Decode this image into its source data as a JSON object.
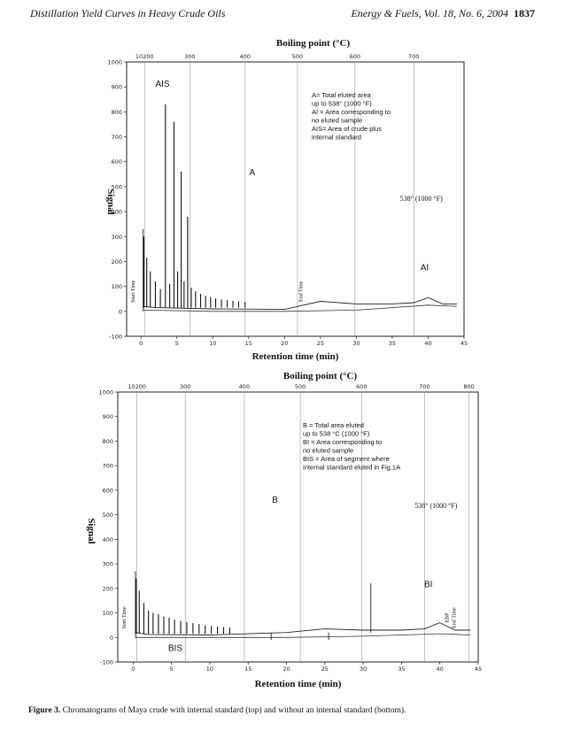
{
  "header": {
    "left": "Distillation Yield Curves in Heavy Crude Oils",
    "right": "Energy & Fuels, Vol. 18, No. 6, 2004",
    "page": "1837"
  },
  "caption": {
    "label": "Figure 3.",
    "text": "Chromatograms of Maya crude with internal standard (top) and without an internal standard (bottom)."
  },
  "chart_data": [
    {
      "type": "line",
      "xlabel": "Retention time (min)",
      "ylabel": "Signal",
      "top_axis_label": "Boiling point (°C)",
      "xlim": [
        -2,
        45
      ],
      "ylim": [
        -100,
        1000
      ],
      "x_ticks": [
        0,
        5,
        10,
        15,
        20,
        25,
        30,
        35,
        40,
        45
      ],
      "y_ticks": [
        -100,
        0,
        100,
        200,
        300,
        400,
        500,
        600,
        700,
        800,
        900,
        1000
      ],
      "bp_ticks": [
        {
          "label": "10200",
          "x": 0.5
        },
        {
          "label": "300",
          "x": 6.8
        },
        {
          "label": "400",
          "x": 14.5
        },
        {
          "label": "500",
          "x": 21.8
        },
        {
          "label": "600",
          "x": 29.8
        },
        {
          "label": "700",
          "x": 38.0
        }
      ],
      "region_labels": [
        {
          "text": "AIS",
          "x": 3,
          "y": 900
        },
        {
          "text": "A",
          "x": 15.5,
          "y": 545
        },
        {
          "text": "AI",
          "x": 39.5,
          "y": 165
        }
      ],
      "legend_lines": [
        "A= Total eluted area",
        "up to 538° (1000 °F)",
        "AI = Area corresponding to",
        "no eluted sample",
        "AIS= Area of crude plus",
        "internal standard"
      ],
      "marker_label": "538° (1000 °F)",
      "marker_x": 37.8,
      "vertical_texts": [
        "Start Time",
        "End Time"
      ],
      "peaks": [
        {
          "x": 0.4,
          "y": 300
        },
        {
          "x": 0.8,
          "y": 215
        },
        {
          "x": 1.3,
          "y": 160
        },
        {
          "x": 2.0,
          "y": 120
        },
        {
          "x": 2.7,
          "y": 90
        },
        {
          "x": 3.4,
          "y": 830
        },
        {
          "x": 4.0,
          "y": 110
        },
        {
          "x": 4.6,
          "y": 760
        },
        {
          "x": 5.1,
          "y": 160
        },
        {
          "x": 5.6,
          "y": 560
        },
        {
          "x": 6.0,
          "y": 120
        },
        {
          "x": 6.5,
          "y": 380
        },
        {
          "x": 7.0,
          "y": 95
        },
        {
          "x": 7.6,
          "y": 80
        },
        {
          "x": 8.3,
          "y": 70
        },
        {
          "x": 9.0,
          "y": 62
        },
        {
          "x": 9.7,
          "y": 58
        },
        {
          "x": 10.4,
          "y": 52
        },
        {
          "x": 11.2,
          "y": 48
        },
        {
          "x": 12.0,
          "y": 45
        },
        {
          "x": 12.8,
          "y": 42
        },
        {
          "x": 13.6,
          "y": 40
        },
        {
          "x": 14.5,
          "y": 38
        }
      ],
      "baseline": [
        [
          0.3,
          20
        ],
        [
          2,
          15
        ],
        [
          10,
          10
        ],
        [
          20,
          8
        ],
        [
          25,
          40
        ],
        [
          30,
          30
        ],
        [
          35,
          30
        ],
        [
          38,
          35
        ],
        [
          40,
          55
        ],
        [
          42,
          30
        ],
        [
          44,
          30
        ]
      ],
      "lower_trace": [
        [
          0.3,
          5
        ],
        [
          10,
          0
        ],
        [
          20,
          0
        ],
        [
          30,
          5
        ],
        [
          40,
          25
        ],
        [
          44,
          20
        ]
      ]
    },
    {
      "type": "line",
      "xlabel": "Retention time (min)",
      "ylabel": "Signal",
      "top_axis_label": "Boiling point (°C)",
      "xlim": [
        -2,
        45
      ],
      "ylim": [
        -100,
        1000
      ],
      "x_ticks": [
        0,
        5,
        10,
        15,
        20,
        25,
        30,
        35,
        40,
        45
      ],
      "y_ticks": [
        -100,
        0,
        100,
        200,
        300,
        400,
        500,
        600,
        700,
        800,
        900,
        1000
      ],
      "bp_ticks": [
        {
          "label": "10200",
          "x": 0.5
        },
        {
          "label": "300",
          "x": 6.8
        },
        {
          "label": "400",
          "x": 14.5
        },
        {
          "label": "500",
          "x": 21.8
        },
        {
          "label": "600",
          "x": 29.8
        },
        {
          "label": "700",
          "x": 38.0
        },
        {
          "label": "800",
          "x": 43.8
        }
      ],
      "region_labels": [
        {
          "text": "B",
          "x": 18.5,
          "y": 550
        },
        {
          "text": "BI",
          "x": 38.5,
          "y": 205
        },
        {
          "text": "BIS",
          "x": 5.5,
          "y": -55
        }
      ],
      "legend_lines": [
        "B = Total area eluted",
        "up to 538 °C (1000 °F)",
        "BI = Area corresponding to",
        "no eluted sample",
        "BIS = Area of segment where",
        "internal standard eluted in Fig.1A"
      ],
      "marker_label": "538° (1000 °F)",
      "marker_x": 38.8,
      "vertical_texts": [
        "Start Time",
        "EBP",
        "End Time"
      ],
      "peaks": [
        {
          "x": 0.4,
          "y": 240
        },
        {
          "x": 0.8,
          "y": 190
        },
        {
          "x": 1.4,
          "y": 140
        },
        {
          "x": 2.0,
          "y": 110
        },
        {
          "x": 2.6,
          "y": 100
        },
        {
          "x": 3.3,
          "y": 95
        },
        {
          "x": 4.0,
          "y": 85
        },
        {
          "x": 4.7,
          "y": 80
        },
        {
          "x": 5.4,
          "y": 72
        },
        {
          "x": 6.2,
          "y": 68
        },
        {
          "x": 7.0,
          "y": 62
        },
        {
          "x": 7.8,
          "y": 58
        },
        {
          "x": 8.6,
          "y": 55
        },
        {
          "x": 9.4,
          "y": 50
        },
        {
          "x": 10.2,
          "y": 47
        },
        {
          "x": 11.0,
          "y": 44
        },
        {
          "x": 11.8,
          "y": 42
        },
        {
          "x": 12.6,
          "y": 40
        }
      ],
      "spikes": [
        {
          "x": 18.0,
          "y": -10
        },
        {
          "x": 25.5,
          "y": -10
        },
        {
          "x": 31.0,
          "y": 220
        }
      ],
      "baseline": [
        [
          0.3,
          20
        ],
        [
          2,
          12
        ],
        [
          10,
          10
        ],
        [
          20,
          20
        ],
        [
          25,
          35
        ],
        [
          30,
          30
        ],
        [
          35,
          30
        ],
        [
          38,
          35
        ],
        [
          40,
          60
        ],
        [
          42,
          30
        ],
        [
          44,
          30
        ]
      ],
      "lower_trace": [
        [
          0.3,
          0
        ],
        [
          10,
          0
        ],
        [
          20,
          0
        ],
        [
          30,
          5
        ],
        [
          40,
          15
        ],
        [
          44,
          10
        ]
      ]
    }
  ]
}
